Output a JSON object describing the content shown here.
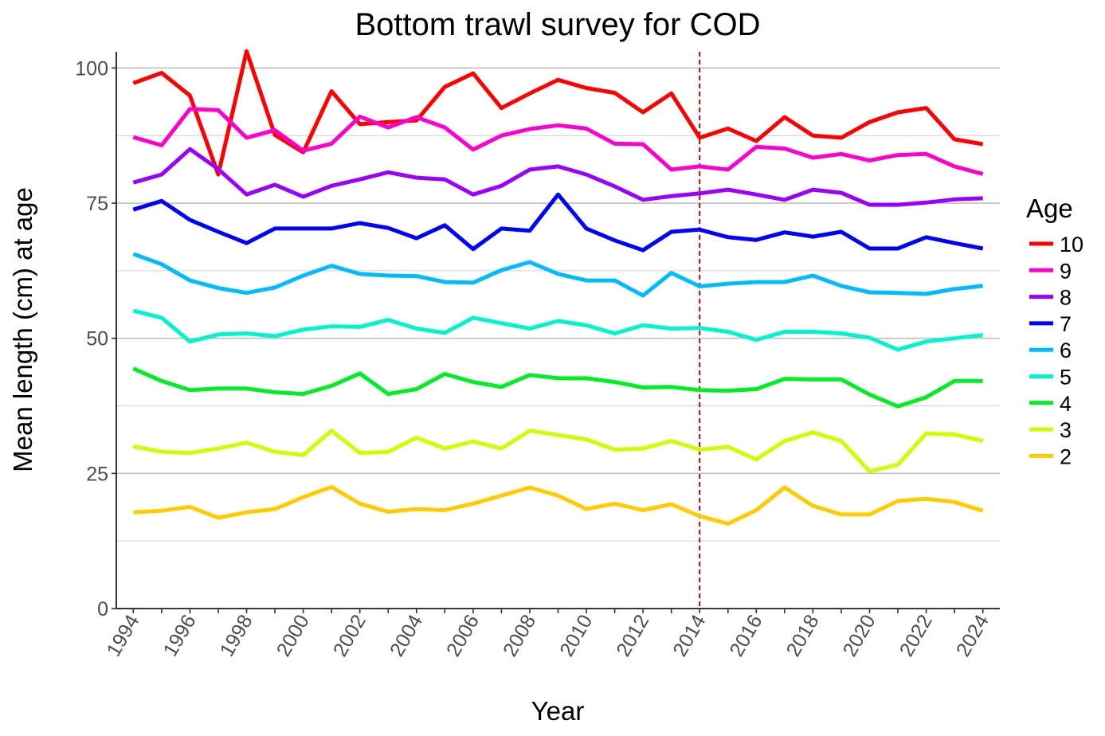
{
  "chart_data": {
    "type": "line",
    "title": "Bottom trawl survey for COD",
    "xlabel": "Year",
    "ylabel": "Mean length (cm) at age",
    "xlim": [
      1993.4,
      2024.6
    ],
    "ylim": [
      0,
      103
    ],
    "x_ticks": [
      1994,
      1996,
      1998,
      2000,
      2002,
      2004,
      2006,
      2008,
      2010,
      2012,
      2014,
      2016,
      2018,
      2020,
      2022,
      2024
    ],
    "y_ticks": [
      0,
      25,
      50,
      75,
      100
    ],
    "grid": "horizontal major and minor",
    "legend_title": "Age",
    "legend_position": "right",
    "vline": {
      "x": 2014,
      "color": "#cc0000",
      "style": "dashed"
    },
    "x": [
      1994,
      1995,
      1996,
      1997,
      1998,
      1999,
      2000,
      2001,
      2002,
      2003,
      2004,
      2005,
      2006,
      2007,
      2008,
      2009,
      2010,
      2011,
      2012,
      2013,
      2014,
      2015,
      2016,
      2017,
      2018,
      2019,
      2020,
      2021,
      2022,
      2023,
      2024
    ],
    "series": [
      {
        "name": "10",
        "color": "#FF0000",
        "values": [
          97.2,
          99.1,
          94.9,
          80.3,
          103.1,
          87.6,
          84.4,
          95.7,
          89.6,
          90.0,
          90.3,
          96.5,
          99.0,
          92.6,
          95.3,
          97.8,
          96.3,
          95.4,
          91.8,
          95.3,
          87.1,
          88.8,
          86.5,
          90.9,
          87.5,
          87.1,
          90.0,
          91.8,
          92.6,
          86.8,
          85.9
        ]
      },
      {
        "name": "9",
        "color": "#FF00CC",
        "values": [
          87.2,
          85.7,
          92.4,
          92.2,
          87.1,
          88.5,
          84.7,
          86.0,
          91.0,
          89.0,
          90.9,
          89.0,
          84.9,
          87.5,
          88.7,
          89.4,
          88.8,
          86.0,
          85.9,
          81.2,
          81.8,
          81.2,
          85.4,
          85.1,
          83.4,
          84.1,
          82.9,
          83.9,
          84.1,
          81.8,
          80.4
        ]
      },
      {
        "name": "8",
        "color": "#9900FF",
        "values": [
          78.8,
          80.3,
          85.0,
          81.3,
          76.6,
          78.4,
          76.2,
          78.2,
          79.4,
          80.7,
          79.7,
          79.4,
          76.6,
          78.2,
          81.2,
          81.8,
          80.3,
          78.1,
          75.6,
          76.3,
          76.8,
          77.5,
          76.6,
          75.6,
          77.5,
          76.9,
          74.7,
          74.7,
          75.1,
          75.7,
          75.9
        ]
      },
      {
        "name": "7",
        "color": "#0000FF",
        "values": [
          73.8,
          75.4,
          71.9,
          69.7,
          67.6,
          70.3,
          70.3,
          70.3,
          71.3,
          70.4,
          68.5,
          70.9,
          66.5,
          70.3,
          69.9,
          76.6,
          70.3,
          68.1,
          66.3,
          69.7,
          70.1,
          68.7,
          68.2,
          69.6,
          68.8,
          69.7,
          66.6,
          66.6,
          68.7,
          67.6,
          66.6
        ]
      },
      {
        "name": "6",
        "color": "#00BBFF",
        "values": [
          65.6,
          63.7,
          60.7,
          59.3,
          58.4,
          59.4,
          61.6,
          63.4,
          61.9,
          61.6,
          61.5,
          60.4,
          60.3,
          62.6,
          64.1,
          61.9,
          60.7,
          60.7,
          57.9,
          62.1,
          59.6,
          60.1,
          60.4,
          60.4,
          61.6,
          59.7,
          58.5,
          58.4,
          58.2,
          59.1,
          59.7
        ]
      },
      {
        "name": "5",
        "color": "#00F5CC",
        "values": [
          55.1,
          53.8,
          49.4,
          50.7,
          50.9,
          50.4,
          51.6,
          52.2,
          52.1,
          53.4,
          51.8,
          51.0,
          53.8,
          52.8,
          51.8,
          53.2,
          52.4,
          50.9,
          52.4,
          51.8,
          51.9,
          51.2,
          49.7,
          51.2,
          51.2,
          50.9,
          50.1,
          47.9,
          49.4,
          50.0,
          50.6
        ]
      },
      {
        "name": "4",
        "color": "#00EE22",
        "values": [
          44.4,
          42.1,
          40.4,
          40.7,
          40.7,
          40.0,
          39.7,
          41.2,
          43.5,
          39.7,
          40.6,
          43.4,
          41.9,
          41.0,
          43.2,
          42.6,
          42.6,
          41.9,
          40.9,
          41.0,
          40.4,
          40.3,
          40.6,
          42.5,
          42.4,
          42.4,
          39.6,
          37.4,
          39.1,
          42.1,
          42.1
        ]
      },
      {
        "name": "3",
        "color": "#CCFF00",
        "values": [
          30.0,
          29.0,
          28.8,
          29.6,
          30.7,
          29.0,
          28.4,
          32.9,
          28.8,
          29.0,
          31.6,
          29.6,
          30.9,
          29.6,
          32.9,
          32.1,
          31.3,
          29.4,
          29.6,
          31.0,
          29.4,
          29.9,
          27.6,
          31.0,
          32.6,
          31.0,
          25.4,
          26.6,
          32.4,
          32.2,
          31.0
        ]
      },
      {
        "name": "2",
        "color": "#FFCC00",
        "values": [
          17.8,
          18.1,
          18.8,
          16.8,
          17.8,
          18.4,
          20.6,
          22.5,
          19.4,
          17.9,
          18.4,
          18.2,
          19.4,
          20.9,
          22.4,
          20.9,
          18.4,
          19.4,
          18.2,
          19.3,
          17.1,
          15.7,
          18.2,
          22.4,
          19.0,
          17.4,
          17.4,
          19.9,
          20.3,
          19.7,
          18.1
        ]
      }
    ]
  }
}
